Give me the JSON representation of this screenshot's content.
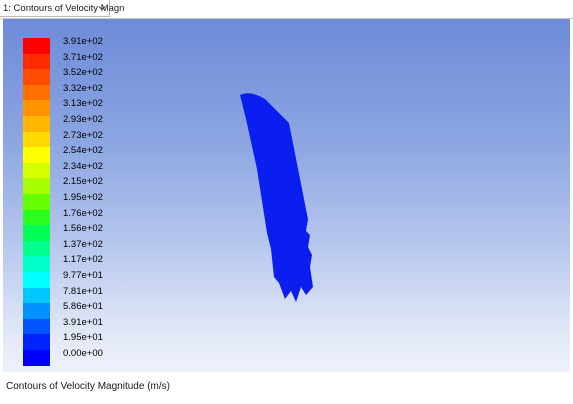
{
  "tab": {
    "label": "1: Contours of Velocity Magn",
    "icon": "chevron-down-icon"
  },
  "legend": {
    "labels": [
      "3.91e+02",
      "3.71e+02",
      "3.52e+02",
      "3.32e+02",
      "3.13e+02",
      "2.93e+02",
      "2.73e+02",
      "2.54e+02",
      "2.34e+02",
      "2.15e+02",
      "1.95e+02",
      "1.76e+02",
      "1.56e+02",
      "1.37e+02",
      "1.17e+02",
      "9.77e+01",
      "7.81e+01",
      "5.86e+01",
      "3.91e+01",
      "1.95e+01",
      "0.00e+00"
    ],
    "colors": [
      "#ff0000",
      "#ff2a00",
      "#ff4d00",
      "#ff7000",
      "#ff9400",
      "#ffb700",
      "#ffd900",
      "#ffff00",
      "#d6ff00",
      "#a8ff00",
      "#66ff00",
      "#2bff1f",
      "#00ff55",
      "#00ff8c",
      "#00ffc8",
      "#00ffff",
      "#00c8ff",
      "#0090ff",
      "#0055ff",
      "#0024ff",
      "#0000ff"
    ]
  },
  "colors": {
    "model": "#0a1ef0",
    "background_top": "#6d8bd8",
    "background_bottom": "#edf1fa"
  },
  "caption": "Contours of Velocity Magnitude (m/s)"
}
